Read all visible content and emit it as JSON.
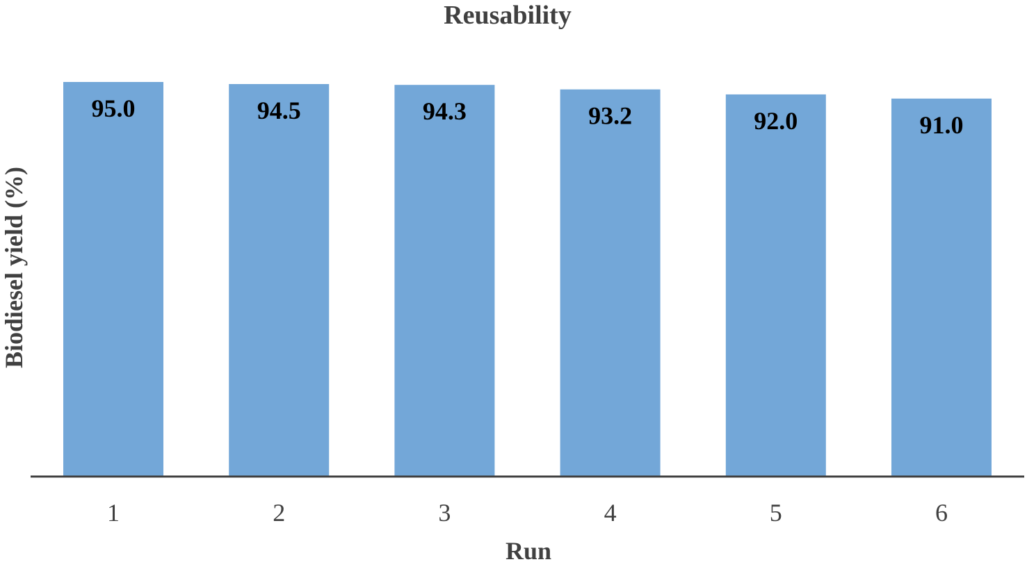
{
  "chart_data": {
    "type": "bar",
    "title": "Reusability",
    "xlabel": "Run",
    "ylabel": "Biodiesel yield (%)",
    "categories": [
      "1",
      "2",
      "3",
      "4",
      "5",
      "6"
    ],
    "values": [
      95.0,
      94.5,
      94.3,
      93.2,
      92.0,
      91.0
    ],
    "data_labels": [
      "95.0",
      "94.5",
      "94.3",
      "93.2",
      "92.0",
      "91.0"
    ],
    "ylim": [
      0,
      96
    ],
    "grid": false,
    "legend": "none",
    "bar_color": "#73a7d8",
    "axis_color": "#404040"
  }
}
